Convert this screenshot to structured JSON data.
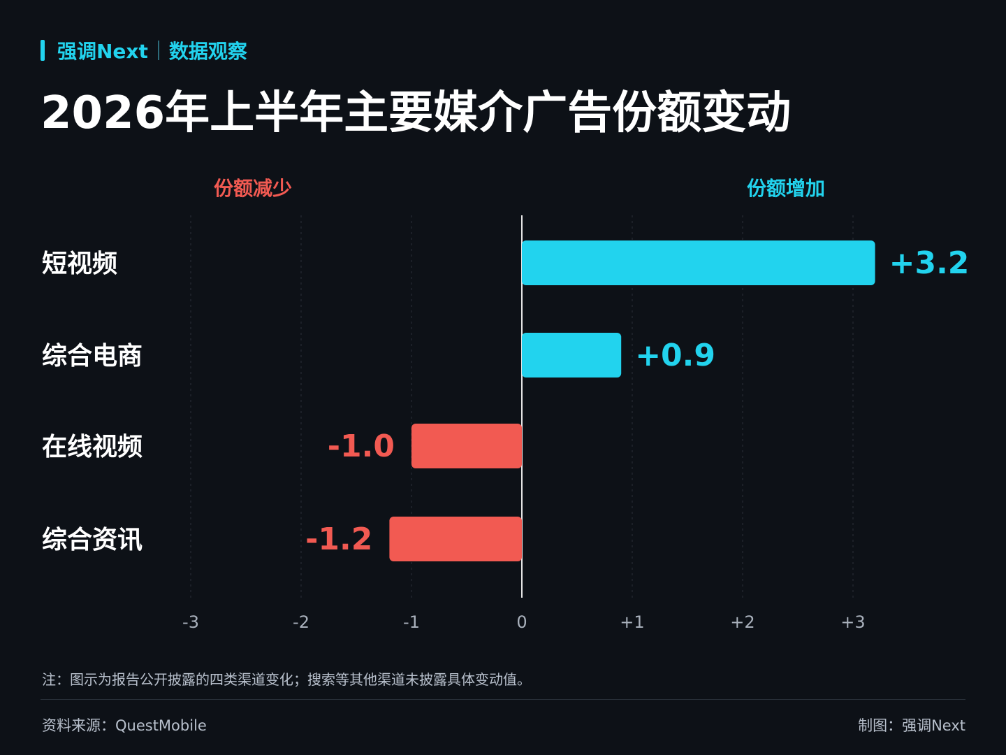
{
  "header": {
    "brand": "强调Next",
    "section": "数据观察",
    "title": "2026年上半年主要媒介广告份额变动"
  },
  "colors": {
    "positive": "#22d3ee",
    "negative": "#f25a52",
    "background": "#0d1117"
  },
  "chart_data": {
    "type": "bar",
    "orientation": "horizontal",
    "categories": [
      "短视频",
      "综合电商",
      "在线视频",
      "综合资讯"
    ],
    "values": [
      3.2,
      0.9,
      -1.0,
      -1.2
    ],
    "value_labels": [
      "+3.2",
      "+0.9",
      "-1.0",
      "-1.2"
    ],
    "xlim": [
      -3,
      3
    ],
    "xticks": [
      -3,
      -2,
      -1,
      0,
      1,
      2,
      3
    ],
    "xtick_labels": [
      "-3",
      "-2",
      "-1",
      "0",
      "+1",
      "+2",
      "+3"
    ],
    "negative_label": "份额减少",
    "positive_label": "份额增加",
    "grid": true
  },
  "footer": {
    "note": "注：图示为报告公开披露的四类渠道变化；搜索等其他渠道未披露具体变动值。",
    "source": "资料来源：QuestMobile",
    "credit": "制图：强调Next"
  }
}
